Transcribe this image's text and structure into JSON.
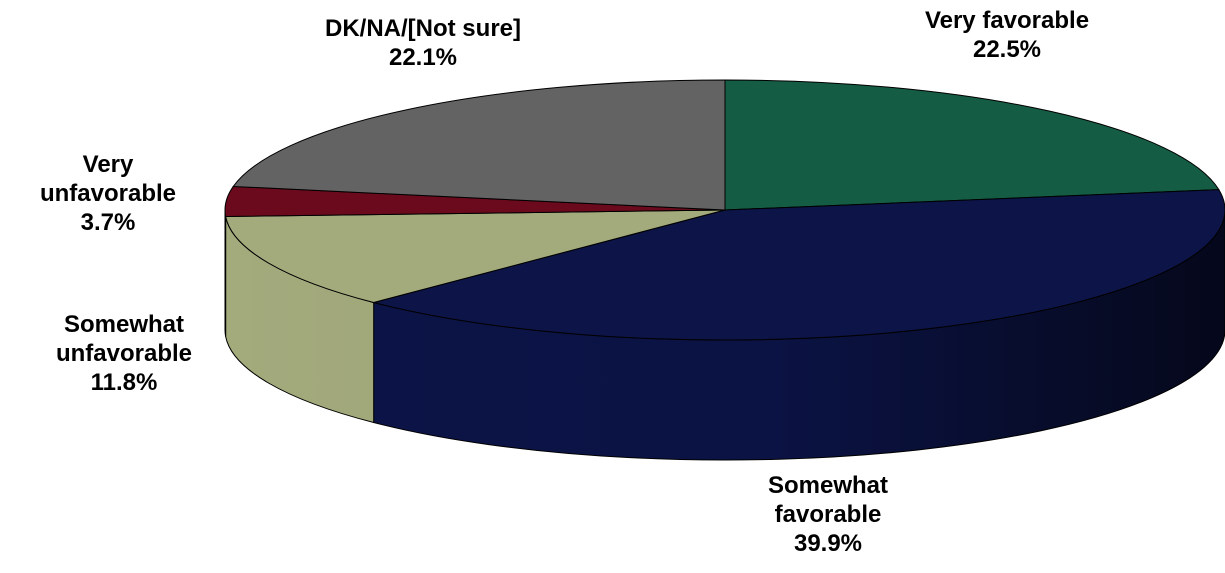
{
  "chart_data": {
    "type": "pie",
    "title": "",
    "slices": [
      {
        "label_lines": [
          "Very favorable"
        ],
        "value": 22.5,
        "value_text": "22.5%",
        "color": "#145c43",
        "label_pos": "top-right"
      },
      {
        "label_lines": [
          "Somewhat",
          "favorable"
        ],
        "value": 39.9,
        "value_text": "39.9%",
        "color": "#0c1448",
        "label_pos": "bottom"
      },
      {
        "label_lines": [
          "Somewhat",
          "unfavorable"
        ],
        "value": 11.8,
        "value_text": "11.8%",
        "color": "#a3aa7c",
        "label_pos": "left"
      },
      {
        "label_lines": [
          "Very",
          "unfavorable"
        ],
        "value": 3.7,
        "value_text": "3.7%",
        "color": "#6a0a1c",
        "label_pos": "left"
      },
      {
        "label_lines": [
          "DK/NA/[Not sure]"
        ],
        "value": 22.1,
        "value_text": "22.1%",
        "color": "#636363",
        "label_pos": "top-left"
      }
    ],
    "start_angle_deg": -90,
    "direction": "clockwise",
    "style": "3d"
  }
}
